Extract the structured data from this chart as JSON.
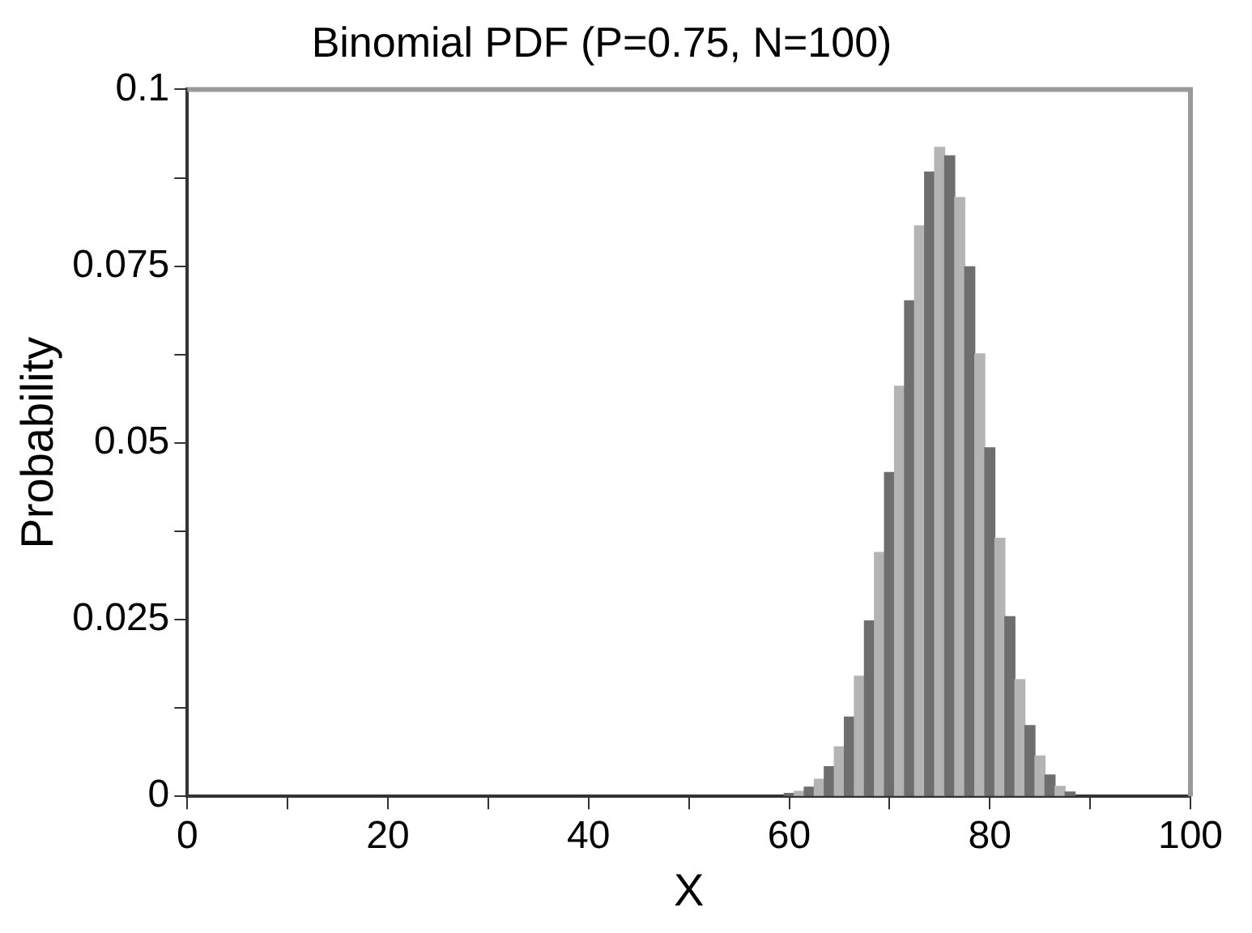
{
  "chart_data": {
    "type": "bar",
    "title": "Binomial PDF (P=0.75, N=100)",
    "xlabel": "X",
    "ylabel": "Probability",
    "x": [
      60,
      61,
      62,
      63,
      64,
      65,
      66,
      67,
      68,
      69,
      70,
      71,
      72,
      73,
      74,
      75,
      76,
      77,
      78,
      79,
      80,
      81,
      82,
      83,
      84,
      85,
      86,
      87,
      88
    ],
    "values": [
      0.0004,
      0.0007,
      0.0013,
      0.0024,
      0.0042,
      0.007,
      0.0112,
      0.017,
      0.0248,
      0.0345,
      0.0458,
      0.058,
      0.0701,
      0.0807,
      0.0883,
      0.0918,
      0.0906,
      0.0847,
      0.0749,
      0.0626,
      0.0493,
      0.0365,
      0.0254,
      0.0165,
      0.01,
      0.0057,
      0.003,
      0.0014,
      0.0006
    ],
    "colors": [
      "#6e6e6e",
      "#b4b4b4",
      "#6e6e6e",
      "#b4b4b4",
      "#6e6e6e",
      "#b4b4b4",
      "#6e6e6e",
      "#b4b4b4",
      "#6e6e6e",
      "#b4b4b4",
      "#6e6e6e",
      "#b4b4b4",
      "#6e6e6e",
      "#b4b4b4",
      "#6e6e6e",
      "#b4b4b4",
      "#6e6e6e",
      "#b4b4b4",
      "#6e6e6e",
      "#b4b4b4",
      "#6e6e6e",
      "#b4b4b4",
      "#6e6e6e",
      "#b4b4b4",
      "#6e6e6e",
      "#b4b4b4",
      "#6e6e6e",
      "#b4b4b4",
      "#6e6e6e"
    ],
    "xlim": [
      0,
      100
    ],
    "xticks": [
      0,
      {
        "value": 10,
        "label": null
      },
      20,
      {
        "value": 30,
        "label": null
      },
      40,
      {
        "value": 50,
        "label": null
      },
      60,
      {
        "value": 70,
        "label": null
      },
      80,
      {
        "value": 90,
        "label": null
      },
      100
    ],
    "ylim": [
      0,
      0.1
    ],
    "yticks": [
      0,
      {
        "value": 0.0125,
        "label": null
      },
      0.025,
      {
        "value": 0.0375,
        "label": null
      },
      0.05,
      {
        "value": 0.0625,
        "label": null
      },
      0.075,
      {
        "value": 0.0875,
        "label": null
      },
      0.1
    ],
    "grid": false,
    "legend": false
  }
}
